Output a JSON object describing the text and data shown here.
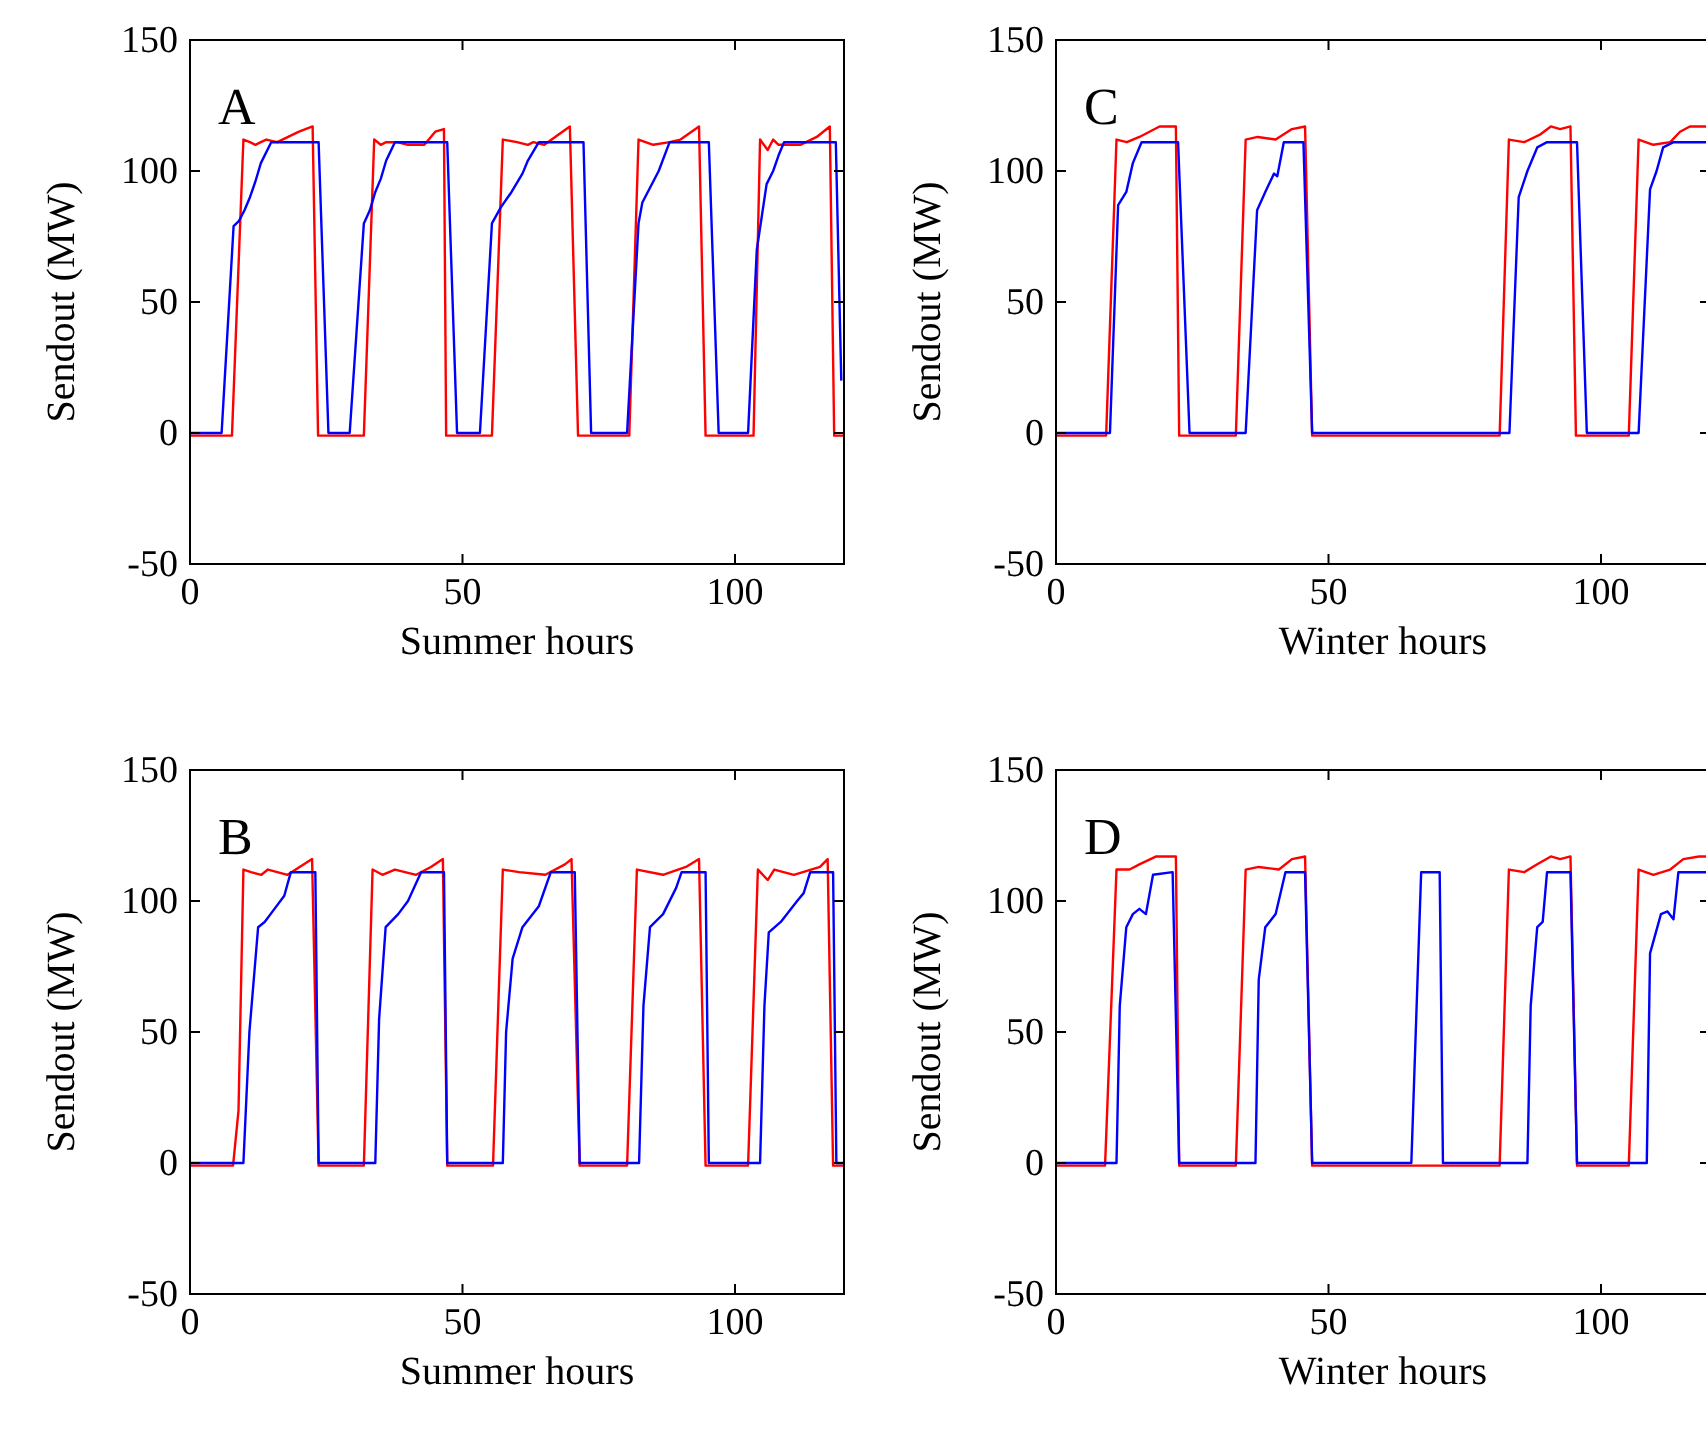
{
  "chart_data": [
    {
      "type": "line",
      "xlabel": "Summer hours",
      "ylabel": "Sendout (MW)",
      "xlim": [
        0,
        120
      ],
      "ylim": [
        -50,
        150
      ],
      "xticks": [
        0,
        50,
        100
      ],
      "yticks": [
        -50,
        0,
        50,
        100,
        150
      ],
      "annotations": [
        "A"
      ],
      "series": [
        {
          "color": "#ff0000",
          "x": [
            0,
            7.7,
            9.8,
            11,
            12,
            13,
            14,
            16,
            18,
            20,
            22.5,
            23.5,
            31.9,
            33.8,
            35,
            36,
            38,
            40,
            43,
            45,
            46.6,
            47,
            55.4,
            57.4,
            60,
            62,
            63,
            65,
            67,
            69.7,
            71.2,
            80.6,
            82.3,
            85,
            88,
            90,
            93.4,
            94.6,
            103.4,
            104.6,
            106,
            107,
            108,
            112,
            115,
            117.4,
            118.2,
            120
          ],
          "values": [
            -1,
            -1,
            112,
            111,
            110,
            111,
            112,
            111,
            113,
            115,
            117,
            -1,
            -1,
            112,
            110,
            111,
            111,
            110,
            110,
            115,
            116,
            -1,
            -1,
            112,
            111,
            110,
            111,
            110,
            113,
            117,
            -1,
            -1,
            112,
            110,
            111,
            112,
            117,
            -1,
            -1,
            112,
            108,
            112,
            110,
            110,
            113,
            117,
            -1,
            -1
          ]
        },
        {
          "color": "#0000ff",
          "x": [
            0,
            5.8,
            8,
            9,
            10,
            11,
            12,
            13,
            14.9,
            23.6,
            25.4,
            29.3,
            31.9,
            33,
            34,
            35,
            36,
            37.6,
            47.2,
            49,
            53.2,
            55.4,
            57,
            59,
            61,
            62,
            64,
            72.2,
            73.6,
            80.2,
            82.3,
            83,
            84,
            86,
            88,
            95.2,
            97,
            102.4,
            104,
            105.8,
            107,
            108,
            109,
            118.5,
            119.5
          ],
          "values": [
            0,
            0,
            79,
            81,
            85,
            90,
            96,
            103,
            111,
            111,
            0,
            0,
            80,
            85,
            92,
            97,
            104,
            111,
            111,
            0,
            0,
            80,
            86,
            92,
            99,
            104,
            111,
            111,
            0,
            0,
            80,
            88,
            92,
            100,
            111,
            111,
            0,
            0,
            70,
            95,
            100,
            106,
            111,
            111,
            20
          ]
        }
      ]
    },
    {
      "type": "line",
      "xlabel": "Winter hours",
      "ylabel": "Sendout (MW)",
      "xlim": [
        0,
        120
      ],
      "ylim": [
        -50,
        150
      ],
      "xticks": [
        0,
        50,
        100
      ],
      "yticks": [
        -50,
        0,
        50,
        100,
        150
      ],
      "annotations": [
        "C"
      ],
      "series": [
        {
          "color": "#ff0000",
          "x": [
            0,
            9.2,
            11.1,
            13,
            15.3,
            19,
            22,
            22.6,
            33,
            34.8,
            37,
            40.3,
            43.3,
            45.7,
            47,
            81.4,
            83.1,
            85.9,
            88.9,
            90.8,
            92.5,
            94.4,
            95.4,
            105.1,
            106.9,
            109.6,
            112.7,
            114.5,
            116.3,
            120
          ],
          "values": [
            -1,
            -1,
            112,
            111,
            113,
            117,
            117,
            -1,
            -1,
            112,
            113,
            112,
            116,
            117,
            -1,
            -1,
            112,
            111,
            114,
            117,
            116,
            117,
            -1,
            -1,
            112,
            110,
            111,
            115,
            117,
            117
          ]
        },
        {
          "color": "#0000ff",
          "x": [
            0,
            9.9,
            11.4,
            12.9,
            14.1,
            15.7,
            22.4,
            24.5,
            34.8,
            36.9,
            38.4,
            40,
            40.6,
            41.8,
            45.4,
            47,
            83.2,
            84.9,
            86.5,
            88.3,
            90.1,
            95.6,
            97.4,
            106.9,
            109,
            110.2,
            111.4,
            113.3,
            120
          ],
          "values": [
            0,
            0,
            87,
            92,
            103,
            111,
            111,
            0,
            0,
            85,
            92,
            99,
            98,
            111,
            111,
            0,
            0,
            90,
            100,
            109,
            111,
            111,
            0,
            0,
            93,
            100,
            109,
            111,
            111
          ]
        }
      ]
    },
    {
      "type": "line",
      "xlabel": "Summer hours",
      "ylabel": "Sendout (MW)",
      "xlim": [
        0,
        120
      ],
      "ylim": [
        -50,
        150
      ],
      "xticks": [
        0,
        50,
        100
      ],
      "yticks": [
        -50,
        0,
        50,
        100,
        150
      ],
      "annotations": [
        "B"
      ],
      "series": [
        {
          "color": "#ff0000",
          "x": [
            0,
            7.9,
            8.9,
            9.8,
            11.2,
            13.1,
            14.3,
            17.9,
            20.9,
            22.4,
            23.6,
            31.9,
            33.5,
            35.3,
            37.6,
            41.5,
            44.2,
            46.4,
            47.2,
            55.6,
            57.4,
            60.4,
            65.2,
            68.8,
            70,
            71.5,
            80.2,
            82,
            86.8,
            91,
            93.4,
            94.6,
            102.4,
            104.2,
            106,
            107.2,
            110.8,
            115.6,
            117,
            118,
            120
          ],
          "values": [
            -1,
            -1,
            20,
            112,
            111,
            110,
            112,
            110,
            114,
            116,
            -1,
            -1,
            112,
            110,
            112,
            110,
            113,
            116,
            -1,
            -1,
            112,
            111,
            110,
            114,
            116,
            -1,
            -1,
            112,
            110,
            113,
            116,
            -1,
            -1,
            112,
            108,
            112,
            110,
            113,
            116,
            -1,
            -1
          ]
        },
        {
          "color": "#0000ff",
          "x": [
            0,
            9.8,
            10.9,
            12.5,
            13.7,
            15.5,
            17.3,
            18.5,
            23,
            23.6,
            34,
            34.7,
            35.9,
            38.2,
            40,
            42.4,
            46.6,
            47.2,
            57.4,
            58,
            59.2,
            61,
            64,
            66.2,
            70.6,
            71.5,
            82.4,
            83.2,
            84.4,
            86.8,
            89.2,
            90.2,
            94.6,
            95.2,
            104.6,
            105.4,
            106.2,
            108.4,
            111.4,
            112.6,
            113.8,
            118,
            118.6,
            120
          ],
          "values": [
            0,
            0,
            50,
            90,
            92,
            97,
            102,
            111,
            111,
            0,
            0,
            55,
            90,
            95,
            100,
            111,
            111,
            0,
            0,
            50,
            78,
            90,
            98,
            111,
            111,
            0,
            0,
            60,
            90,
            95,
            105,
            111,
            111,
            0,
            0,
            60,
            88,
            92,
            100,
            103,
            111,
            111,
            0,
            0
          ]
        }
      ]
    },
    {
      "type": "line",
      "xlabel": "Winter hours",
      "ylabel": "Sendout (MW)",
      "xlim": [
        0,
        120
      ],
      "ylim": [
        -50,
        150
      ],
      "xticks": [
        0,
        50,
        100
      ],
      "yticks": [
        -50,
        0,
        50,
        100,
        150
      ],
      "annotations": [
        "D"
      ],
      "series": [
        {
          "color": "#ff0000",
          "x": [
            0,
            9,
            11.1,
            13.5,
            15.3,
            18.4,
            22,
            22.6,
            33,
            34.8,
            37.2,
            40.9,
            43.3,
            45.7,
            47,
            81.4,
            83.1,
            85.9,
            88.3,
            90.8,
            92.5,
            94.4,
            95.6,
            105.1,
            106.9,
            109.6,
            112.7,
            115.1,
            118,
            120
          ],
          "values": [
            -1,
            -1,
            112,
            112,
            114,
            117,
            117,
            -1,
            -1,
            112,
            113,
            112,
            116,
            117,
            -1,
            -1,
            112,
            111,
            114,
            117,
            116,
            117,
            -1,
            -1,
            112,
            110,
            112,
            116,
            117,
            117
          ]
        },
        {
          "color": "#0000ff",
          "x": [
            0,
            11.1,
            11.7,
            12.9,
            14.1,
            15.3,
            16.5,
            17.8,
            21.4,
            22.6,
            36.6,
            37.2,
            38.4,
            40.3,
            42.1,
            45.7,
            47,
            65.2,
            67,
            70.4,
            71,
            86.5,
            87.1,
            88.3,
            89.3,
            90.1,
            94.4,
            95.6,
            108.4,
            109,
            111,
            112.2,
            113.3,
            114.2,
            120
          ],
          "values": [
            0,
            0,
            60,
            90,
            95,
            97,
            95,
            110,
            111,
            0,
            0,
            70,
            90,
            95,
            111,
            111,
            0,
            0,
            111,
            111,
            0,
            0,
            60,
            90,
            92,
            111,
            111,
            0,
            0,
            80,
            95,
            96,
            93,
            111,
            111
          ]
        }
      ]
    }
  ]
}
